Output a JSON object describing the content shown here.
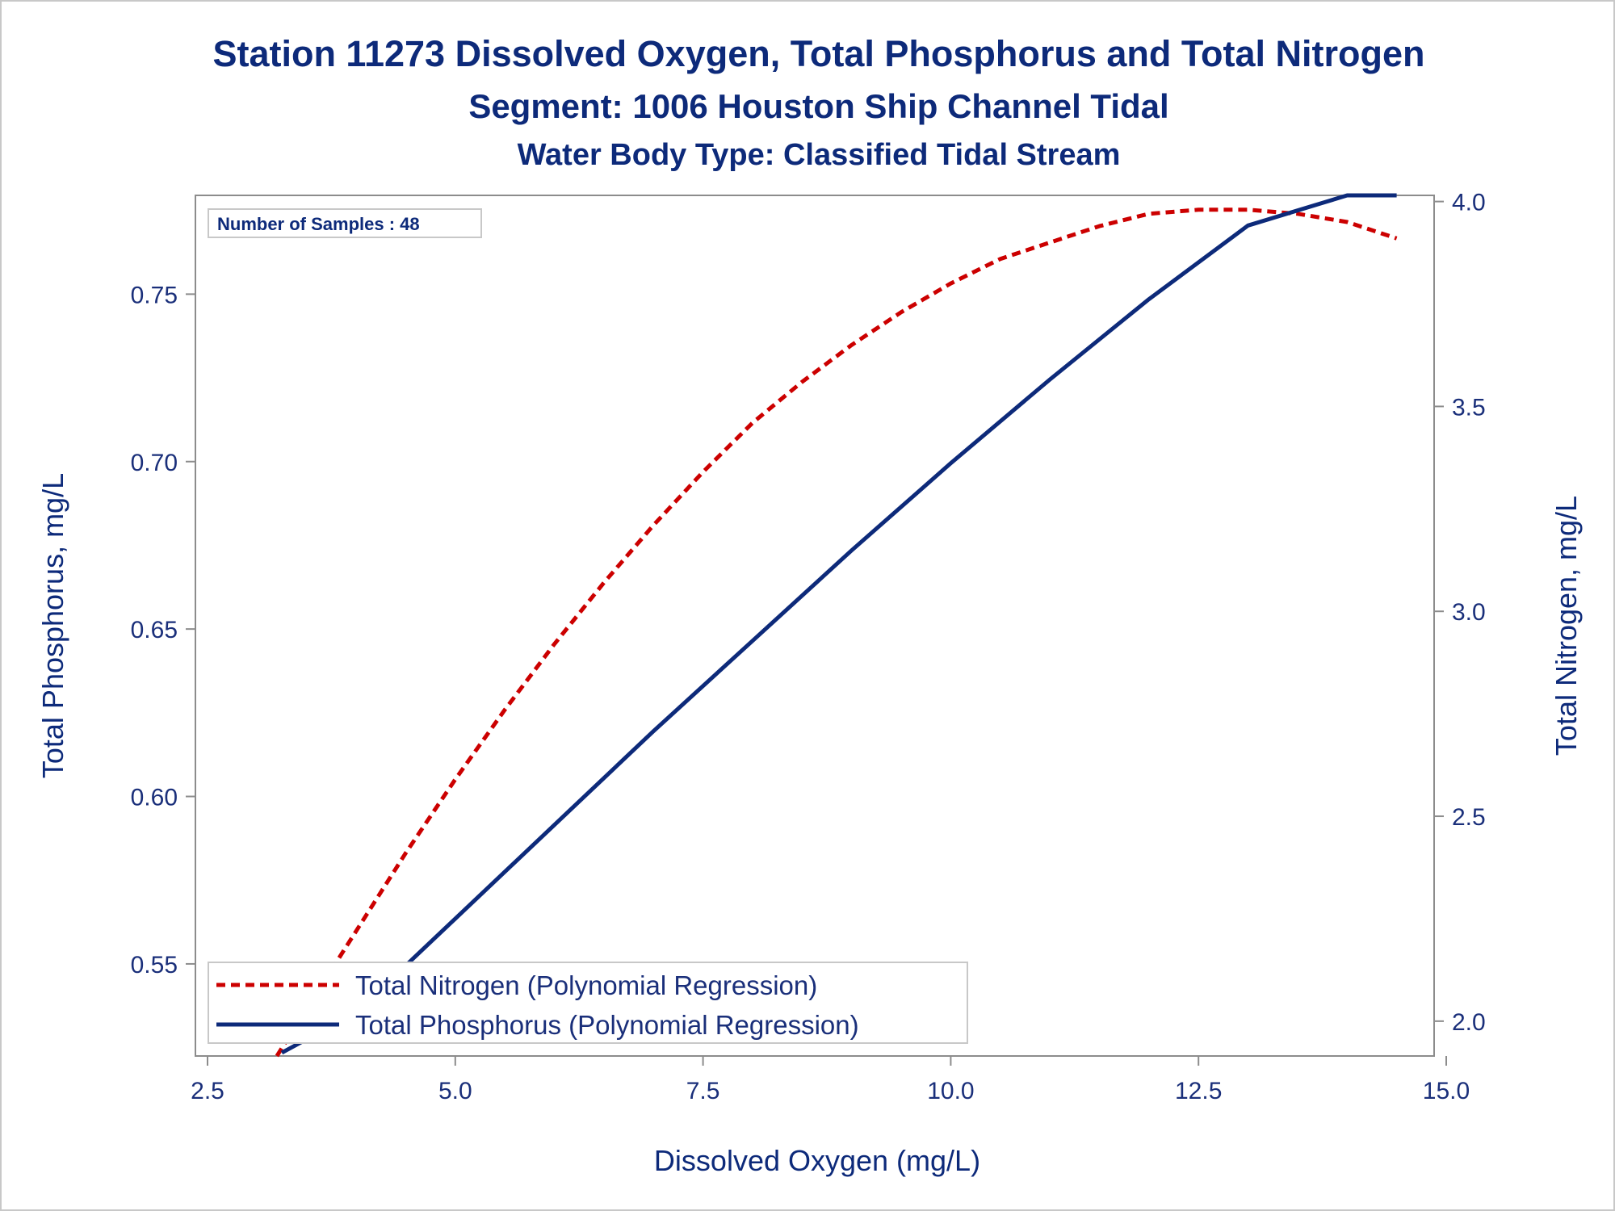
{
  "chart_data": {
    "type": "line",
    "title": "Station 11273  Dissolved Oxygen, Total Phosphorus and Total Nitrogen",
    "subtitle": "Segment: 1006  Houston Ship Channel Tidal",
    "subtitle2": "Water Body Type: Classified Tidal Stream",
    "xlabel": "Dissolved Oxygen (mg/L)",
    "ylabel": "Total Phosphorus, mg/L",
    "y2label": "Total Nitrogen, mg/L",
    "xlim": [
      2.5,
      15.0
    ],
    "ylim": [
      0.5225,
      0.7795
    ],
    "y2lim": [
      1.915,
      4.015
    ],
    "xticks": [
      "2.5",
      "5.0",
      "7.5",
      "10.0",
      "12.5",
      "15.0"
    ],
    "yticks": [
      "0.55",
      "0.60",
      "0.65",
      "0.70",
      "0.75"
    ],
    "y2ticks": [
      "2.0",
      "2.5",
      "3.0",
      "3.5",
      "4.0"
    ],
    "note": "Number of Samples : 48",
    "legend_position": "bottom-left",
    "series": [
      {
        "name": "Total Nitrogen (Polynomial Regression)",
        "axis": "right",
        "color": "#cc0000",
        "style": "dashed",
        "x": [
          3.2,
          3.5,
          4.0,
          4.5,
          5.0,
          5.5,
          6.0,
          6.5,
          7.0,
          7.5,
          8.0,
          8.5,
          9.0,
          9.5,
          10.0,
          10.5,
          11.0,
          11.5,
          12.0,
          12.5,
          13.0,
          13.5,
          14.0,
          14.5
        ],
        "values": [
          1.91,
          2.03,
          2.22,
          2.41,
          2.59,
          2.76,
          2.92,
          3.07,
          3.21,
          3.34,
          3.46,
          3.56,
          3.65,
          3.73,
          3.8,
          3.86,
          3.9,
          3.94,
          3.97,
          3.98,
          3.98,
          3.97,
          3.95,
          3.91
        ]
      },
      {
        "name": "Total Phosphorus (Polynomial Regression)",
        "axis": "left",
        "color": "#0d2a7a",
        "style": "solid",
        "x": [
          3.25,
          4.0,
          5.0,
          6.0,
          7.0,
          8.0,
          9.0,
          10.0,
          11.0,
          12.0,
          13.0,
          14.0,
          14.5
        ],
        "values": [
          0.5235,
          0.5355,
          0.5635,
          0.5915,
          0.6195,
          0.6465,
          0.6735,
          0.6995,
          0.7245,
          0.7485,
          0.7705,
          0.7905,
          0.7997
        ]
      }
    ]
  }
}
